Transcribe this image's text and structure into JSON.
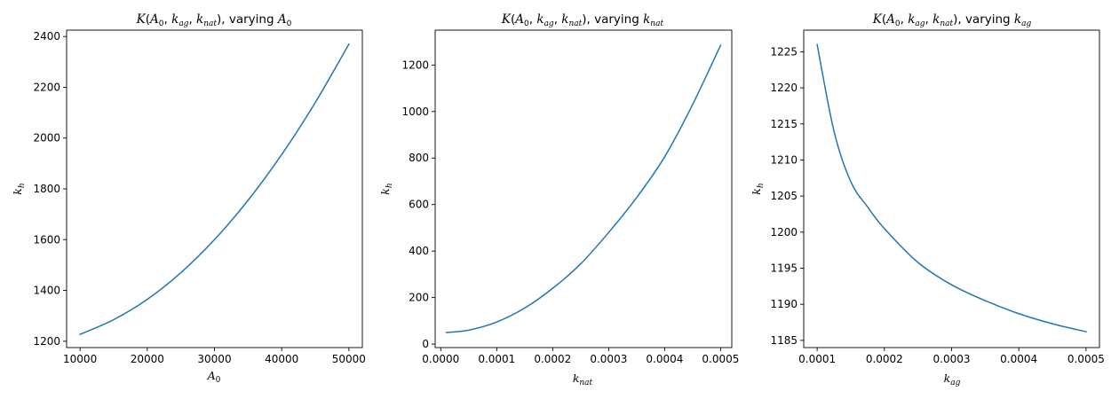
{
  "chart_data": [
    {
      "type": "line",
      "title": "K(A₀, k_ag, k_nat), varying A₀",
      "xlabel": "A₀",
      "ylabel": "k_h",
      "xlim": [
        8000,
        52000
      ],
      "ylim": [
        1175,
        2425
      ],
      "x_ticks": [
        10000,
        20000,
        30000,
        40000,
        50000
      ],
      "x_tick_labels": [
        "10000",
        "20000",
        "30000",
        "40000",
        "50000"
      ],
      "y_ticks": [
        1200,
        1400,
        1600,
        1800,
        2000,
        2200,
        2400
      ],
      "y_tick_labels": [
        "1200",
        "1400",
        "1600",
        "1800",
        "2000",
        "2200",
        "2400"
      ],
      "grid": false,
      "series": [
        {
          "color": "#1f77b4",
          "x": [
            10000,
            15000,
            20000,
            25000,
            30000,
            35000,
            40000,
            45000,
            50000
          ],
          "y": [
            1227,
            1285,
            1365,
            1470,
            1600,
            1755,
            1935,
            2140,
            2370
          ]
        }
      ]
    },
    {
      "type": "line",
      "title": "K(A₀, k_ag, k_nat), varying k_nat",
      "xlabel": "k_nat",
      "ylabel": "k_h",
      "xlim": [
        -1e-05,
        0.00052
      ],
      "ylim": [
        -15,
        1350
      ],
      "x_ticks": [
        0.0,
        0.0001,
        0.0002,
        0.0003,
        0.0004,
        0.0005
      ],
      "x_tick_labels": [
        "0.0000",
        "0.0001",
        "0.0002",
        "0.0003",
        "0.0004",
        "0.0005"
      ],
      "y_ticks": [
        0,
        200,
        400,
        600,
        800,
        1000,
        1200
      ],
      "y_tick_labels": [
        "0",
        "200",
        "400",
        "600",
        "800",
        "1000",
        "1200"
      ],
      "grid": false,
      "series": [
        {
          "color": "#1f77b4",
          "x": [
            1e-05,
            5e-05,
            0.0001,
            0.00015,
            0.0002,
            0.00025,
            0.0003,
            0.00035,
            0.0004,
            0.00045,
            0.0005
          ],
          "y": [
            50,
            60,
            95,
            155,
            240,
            345,
            480,
            630,
            805,
            1030,
            1285
          ]
        }
      ]
    },
    {
      "type": "line",
      "title": "K(A₀, k_ag, k_nat), varying k_ag",
      "xlabel": "k_ag",
      "ylabel": "k_h",
      "xlim": [
        8e-05,
        0.00052
      ],
      "ylim": [
        1184,
        1228
      ],
      "x_ticks": [
        0.0001,
        0.0002,
        0.0003,
        0.0004,
        0.0005
      ],
      "x_tick_labels": [
        "0.0001",
        "0.0002",
        "0.0003",
        "0.0004",
        "0.0005"
      ],
      "y_ticks": [
        1185,
        1190,
        1195,
        1200,
        1205,
        1210,
        1215,
        1220,
        1225
      ],
      "y_tick_labels": [
        "1185",
        "1190",
        "1195",
        "1200",
        "1205",
        "1210",
        "1215",
        "1220",
        "1225"
      ],
      "grid": false,
      "series": [
        {
          "color": "#1f77b4",
          "x": [
            0.0001,
            0.000125,
            0.00015,
            0.000175,
            0.0002,
            0.00025,
            0.0003,
            0.00035,
            0.0004,
            0.00045,
            0.0005
          ],
          "y": [
            1226,
            1214,
            1207,
            1203.5,
            1200.5,
            1195.8,
            1192.7,
            1190.5,
            1188.7,
            1187.3,
            1186.2
          ]
        }
      ]
    }
  ]
}
